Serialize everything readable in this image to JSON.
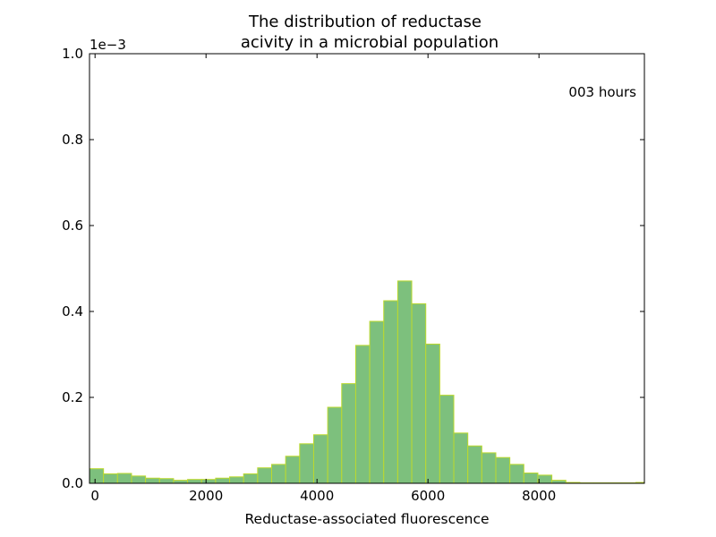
{
  "chart_data": {
    "type": "bar",
    "title_lines": [
      "The distribution of reductase",
      "acivity in a microbial population"
    ],
    "xlabel": "Reductase-associated fluorescence",
    "ylabel": "",
    "y_offset_label": "1e−3",
    "annotation": "003 hours",
    "xlim": [
      -100,
      9900
    ],
    "ylim": [
      0,
      1.0
    ],
    "x_ticks": [
      0,
      2000,
      4000,
      6000,
      8000
    ],
    "x_tick_labels": [
      "0",
      "2000",
      "4000",
      "6000",
      "8000"
    ],
    "y_ticks": [
      0,
      0.2,
      0.4,
      0.6,
      0.8,
      1.0
    ],
    "y_tick_labels": [
      "0.0",
      "0.2",
      "0.4",
      "0.6",
      "0.8",
      "1.0"
    ],
    "bin_edges": [
      -100,
      152.5,
      405,
      657.5,
      910,
      1162.5,
      1415,
      1667.5,
      1920,
      2172.5,
      2425,
      2677.5,
      2930,
      3182.5,
      3435,
      3687.5,
      3940,
      4192.5,
      4445,
      4697.5,
      4950,
      5202.5,
      5455,
      5707.5,
      5960,
      6212.5,
      6465,
      6717.5,
      6970,
      7222.5,
      7475,
      7727.5,
      7980,
      8232.5,
      8485,
      8737.5,
      8990,
      9242.5,
      9495,
      9747.5,
      9900
    ],
    "values": [
      0.034,
      0.022,
      0.023,
      0.017,
      0.012,
      0.011,
      0.007,
      0.009,
      0.009,
      0.012,
      0.015,
      0.022,
      0.036,
      0.044,
      0.063,
      0.092,
      0.113,
      0.177,
      0.232,
      0.321,
      0.377,
      0.425,
      0.471,
      0.418,
      0.324,
      0.205,
      0.117,
      0.087,
      0.071,
      0.06,
      0.044,
      0.024,
      0.019,
      0.007,
      0.002,
      0.001,
      0.001,
      0.001,
      0.001,
      0.002
    ],
    "bar_color": "#7dc07d",
    "edge_color": "#bcd92e",
    "grid": false
  }
}
